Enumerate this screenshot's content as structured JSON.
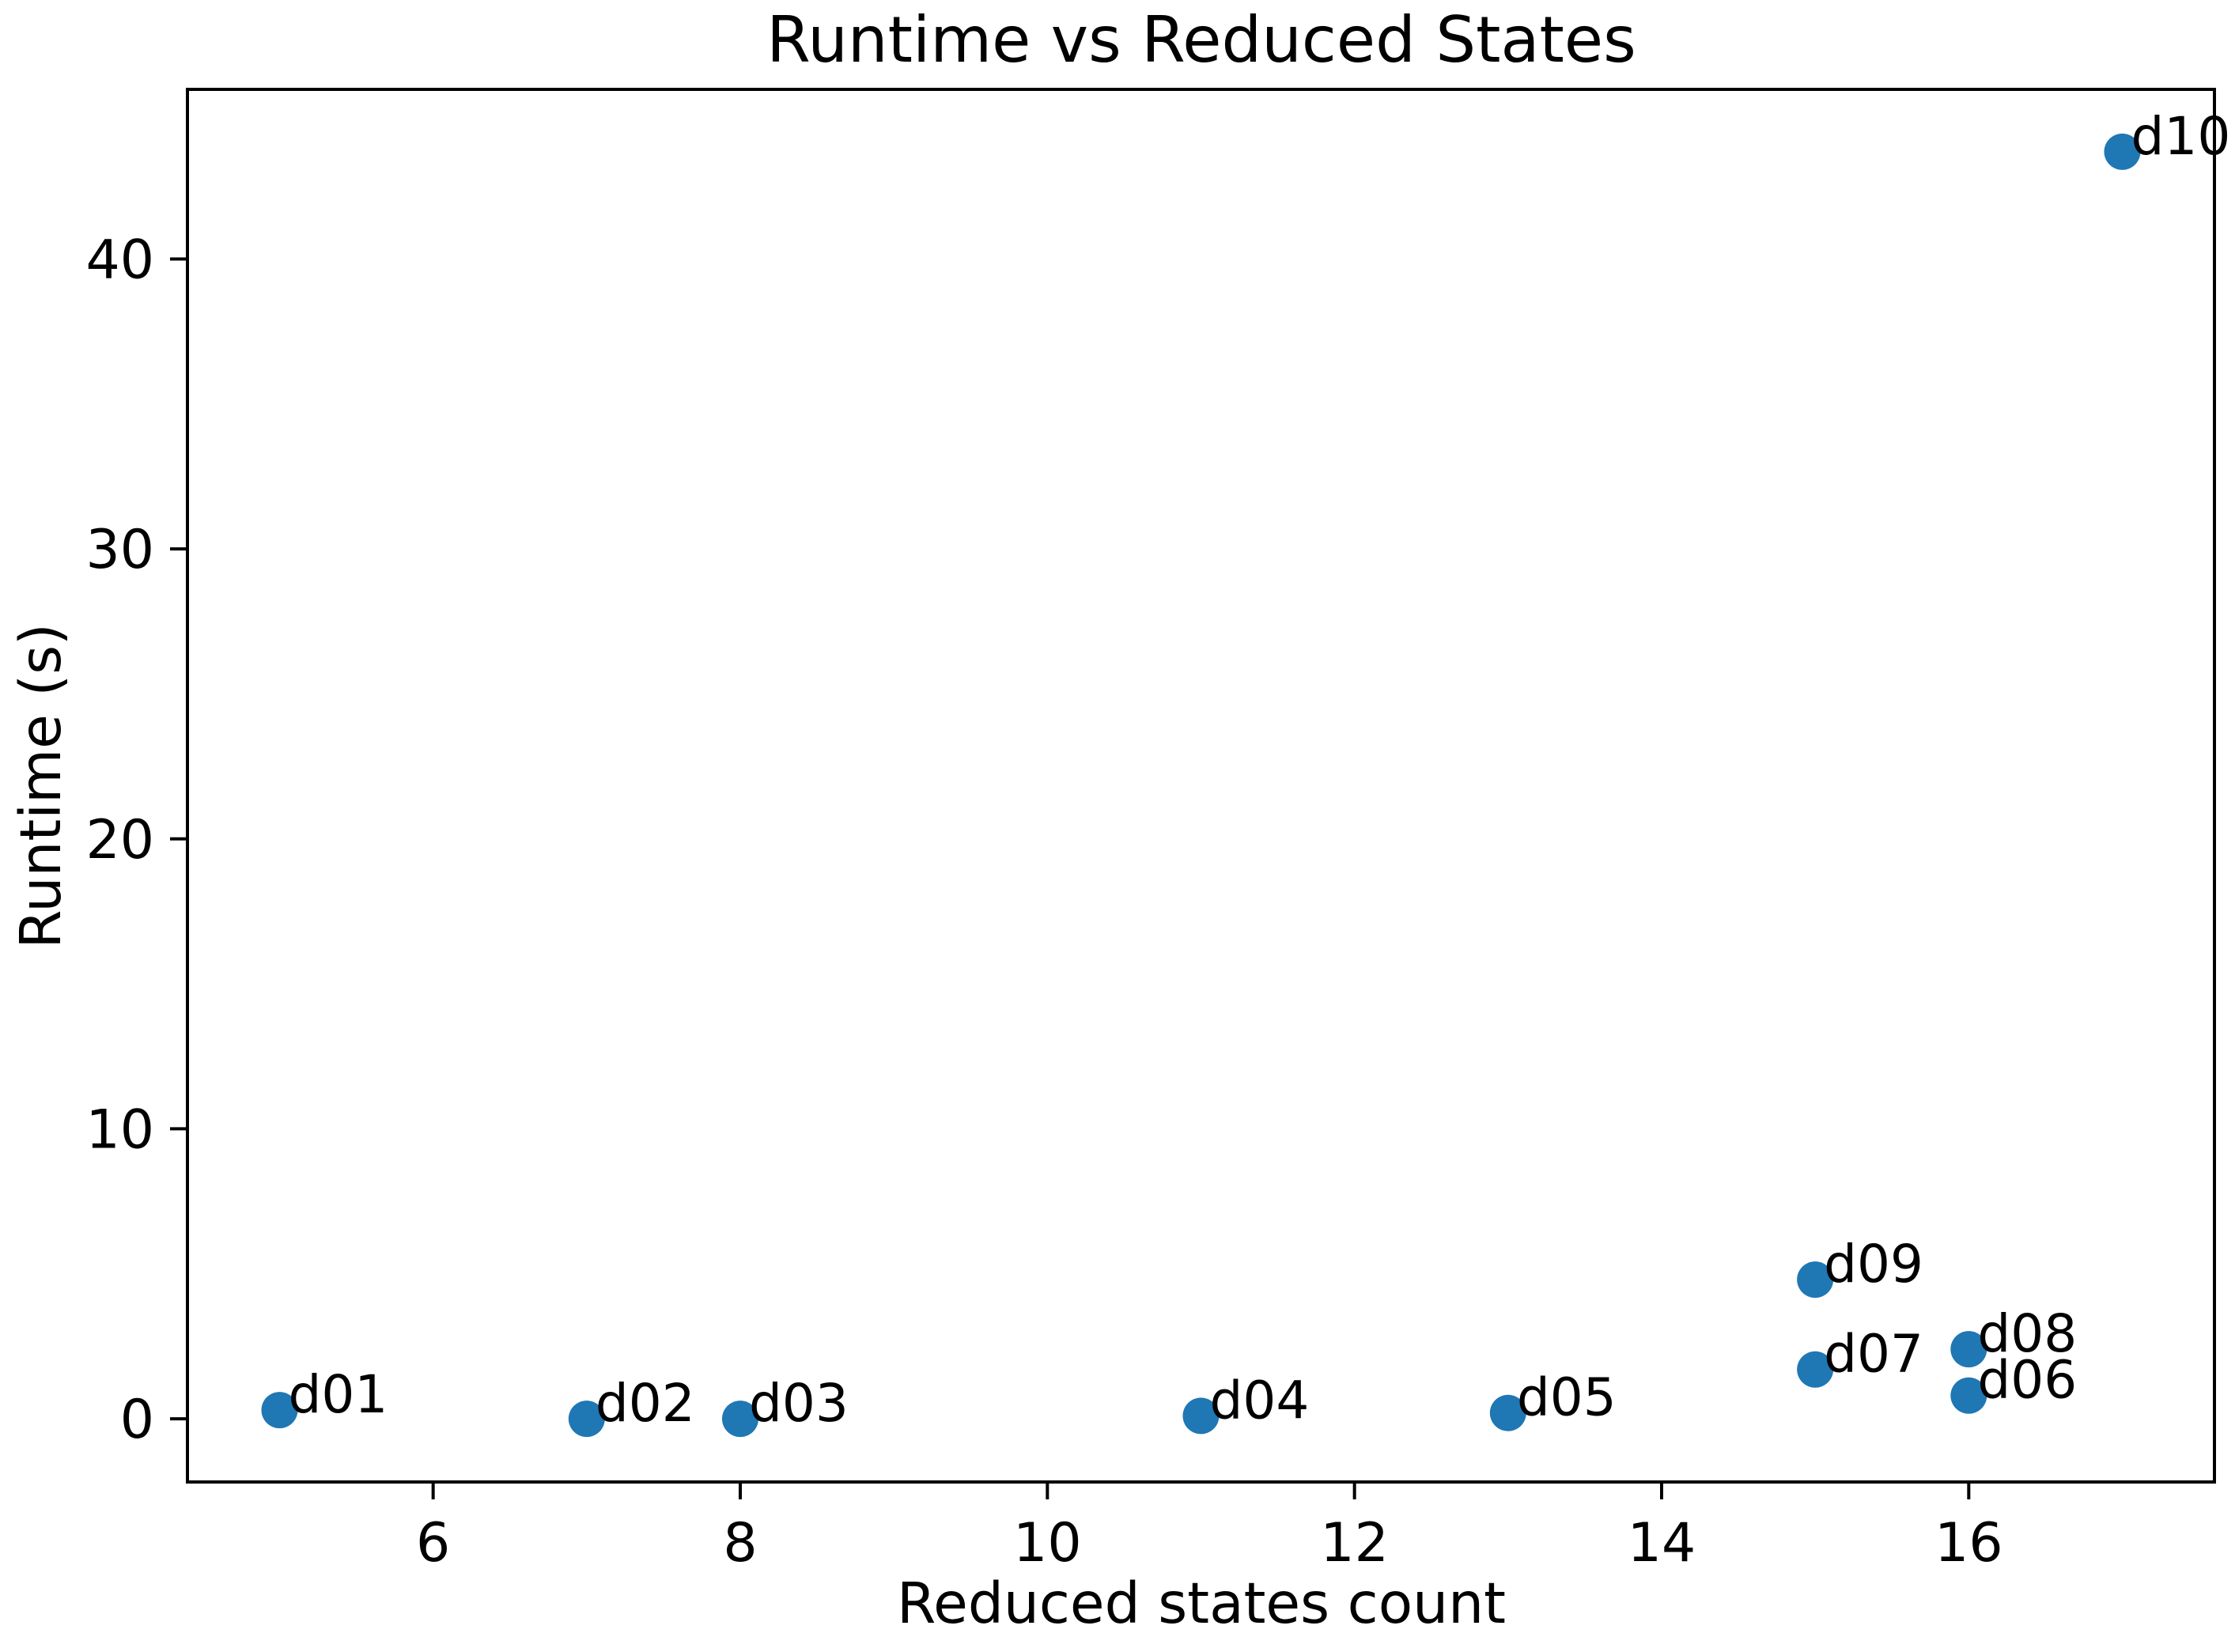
{
  "figure": {
    "background": "#ffffff",
    "spine_color": "#000000",
    "text_color": "#000000"
  },
  "chart_data": {
    "type": "scatter",
    "title": "Runtime vs Reduced States",
    "xlabel": "Reduced states count",
    "ylabel": "Runtime (s)",
    "xlim": [
      4.4,
      17.6
    ],
    "ylim": [
      -2.18,
      45.85
    ],
    "xticks": [
      6,
      8,
      10,
      12,
      14,
      16
    ],
    "yticks": [
      0,
      10,
      20,
      30,
      40
    ],
    "grid": false,
    "legend": "none",
    "marker_color": "#1f77b4",
    "marker_shape": "circle",
    "points": [
      {
        "label": "d01",
        "x": 5,
        "y": 0.3
      },
      {
        "label": "d02",
        "x": 7,
        "y": 0.0
      },
      {
        "label": "d03",
        "x": 8,
        "y": 0.0
      },
      {
        "label": "d04",
        "x": 11,
        "y": 0.1
      },
      {
        "label": "d05",
        "x": 13,
        "y": 0.2
      },
      {
        "label": "d06",
        "x": 16,
        "y": 0.8
      },
      {
        "label": "d07",
        "x": 15,
        "y": 1.7
      },
      {
        "label": "d08",
        "x": 16,
        "y": 2.4
      },
      {
        "label": "d09",
        "x": 15,
        "y": 4.8
      },
      {
        "label": "d10",
        "x": 17,
        "y": 43.7
      }
    ]
  }
}
